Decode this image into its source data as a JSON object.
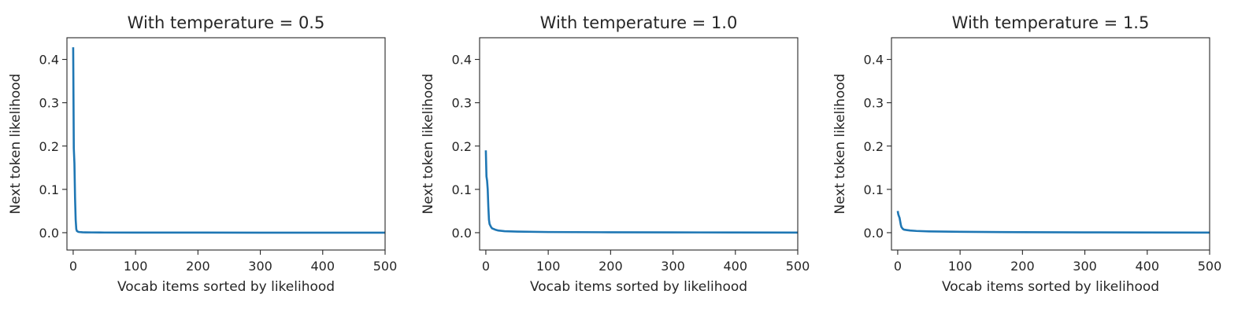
{
  "chart_data": [
    {
      "type": "line",
      "title": "With temperature = 0.5",
      "xlabel": "Vocab items sorted by likelihood",
      "ylabel": "Next token likelihood",
      "xlim": [
        -10,
        500
      ],
      "ylim": [
        -0.04,
        0.45
      ],
      "xticks": [
        0,
        100,
        200,
        300,
        400,
        500
      ],
      "xtick_labels": [
        "0",
        "100",
        "200",
        "300",
        "400",
        "500"
      ],
      "yticks": [
        0.0,
        0.1,
        0.2,
        0.3,
        0.4
      ],
      "ytick_labels": [
        "0.0",
        "0.1",
        "0.2",
        "0.3",
        "0.4"
      ],
      "color": "#1f77b4",
      "series": [
        {
          "x": [
            0,
            1,
            2,
            3,
            4,
            5,
            6,
            8,
            10,
            15,
            20,
            30,
            50,
            100,
            200,
            300,
            400,
            500
          ],
          "values": [
            0.428,
            0.195,
            0.16,
            0.08,
            0.03,
            0.008,
            0.004,
            0.002,
            0.0015,
            0.001,
            0.0008,
            0.0006,
            0.0004,
            0.0003,
            0.0002,
            0.0001,
            0.0001,
            0.0001
          ]
        }
      ]
    },
    {
      "type": "line",
      "title": "With temperature = 1.0",
      "xlabel": "Vocab items sorted by likelihood",
      "ylabel": "Next token likelihood",
      "xlim": [
        -10,
        500
      ],
      "ylim": [
        -0.04,
        0.45
      ],
      "xticks": [
        0,
        100,
        200,
        300,
        400,
        500
      ],
      "xtick_labels": [
        "0",
        "100",
        "200",
        "300",
        "400",
        "500"
      ],
      "yticks": [
        0.0,
        0.1,
        0.2,
        0.3,
        0.4
      ],
      "ytick_labels": [
        "0.0",
        "0.1",
        "0.2",
        "0.3",
        "0.4"
      ],
      "color": "#1f77b4",
      "series": [
        {
          "x": [
            0,
            1,
            2,
            3,
            4,
            5,
            6,
            8,
            10,
            15,
            20,
            30,
            50,
            100,
            200,
            300,
            400,
            500
          ],
          "values": [
            0.19,
            0.13,
            0.12,
            0.1,
            0.06,
            0.03,
            0.02,
            0.014,
            0.01,
            0.007,
            0.005,
            0.0035,
            0.0025,
            0.0015,
            0.001,
            0.0007,
            0.0005,
            0.0003
          ]
        }
      ]
    },
    {
      "type": "line",
      "title": "With temperature = 1.5",
      "xlabel": "Vocab items sorted by likelihood",
      "ylabel": "Next token likelihood",
      "xlim": [
        -10,
        500
      ],
      "ylim": [
        -0.04,
        0.45
      ],
      "xticks": [
        0,
        100,
        200,
        300,
        400,
        500
      ],
      "xtick_labels": [
        "0",
        "100",
        "200",
        "300",
        "400",
        "500"
      ],
      "yticks": [
        0.0,
        0.1,
        0.2,
        0.3,
        0.4
      ],
      "ytick_labels": [
        "0.0",
        "0.1",
        "0.2",
        "0.3",
        "0.4"
      ],
      "color": "#1f77b4",
      "series": [
        {
          "x": [
            0,
            1,
            2,
            3,
            4,
            5,
            6,
            8,
            10,
            15,
            20,
            30,
            50,
            100,
            200,
            300,
            400,
            500
          ],
          "values": [
            0.05,
            0.042,
            0.038,
            0.034,
            0.026,
            0.018,
            0.013,
            0.009,
            0.007,
            0.006,
            0.005,
            0.004,
            0.003,
            0.002,
            0.0012,
            0.0008,
            0.0005,
            0.0003
          ]
        }
      ]
    }
  ]
}
